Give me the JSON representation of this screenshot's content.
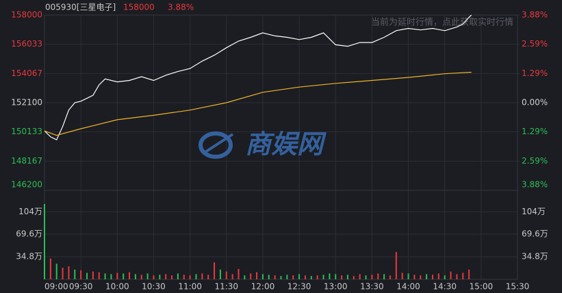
{
  "chart_data": {
    "type": "line",
    "header": {
      "code": "005930[三星电子]",
      "price": "158000",
      "change": "3.88%"
    },
    "notice": "当前为延时行情，点此获取实时行情",
    "watermark": "商娱网",
    "xticks": [
      "09:00",
      "09:30",
      "10:00",
      "10:30",
      "11:00",
      "11:30",
      "12:00",
      "12:30",
      "13:00",
      "13:30",
      "14:00",
      "14:30",
      "15:00",
      "15:30"
    ],
    "xlim": [
      "09:00",
      "15:30"
    ],
    "ylim": [
      146200,
      158000
    ],
    "yticks": [
      146200,
      148167,
      150133,
      152100,
      154067,
      156033,
      158000
    ],
    "y2lim": [
      -3.88,
      3.88
    ],
    "y2ticks": [
      {
        "value": -3.88,
        "label": "3.88%"
      },
      {
        "value": -2.59,
        "label": "2.59%"
      },
      {
        "value": -1.29,
        "label": "1.29%"
      },
      {
        "value": 0,
        "label": "0.00%"
      },
      {
        "value": 1.29,
        "label": "1.29%"
      },
      {
        "value": 2.59,
        "label": "2.59%"
      },
      {
        "value": 3.88,
        "label": "3.88%"
      }
    ],
    "up_color": "#e8383d",
    "down_color": "#2ebd55",
    "flat_color": "#d0d0d0",
    "grid": true,
    "series": [
      {
        "color": "#ffffff",
        "x": [
          "09:00",
          "09:05",
          "09:10",
          "09:15",
          "09:20",
          "09:25",
          "09:30",
          "09:40",
          "09:45",
          "09:50",
          "10:00",
          "10:10",
          "10:20",
          "10:30",
          "10:40",
          "10:50",
          "11:00",
          "11:10",
          "11:20",
          "11:30",
          "11:40",
          "11:50",
          "12:00",
          "12:10",
          "12:20",
          "12:30",
          "12:40",
          "12:50",
          "13:00",
          "13:10",
          "13:20",
          "13:30",
          "13:40",
          "13:50",
          "14:00",
          "14:10",
          "14:20",
          "14:30",
          "14:40",
          "14:45",
          "14:50",
          "14:52"
        ],
        "values": [
          150200,
          149800,
          149600,
          150500,
          151600,
          152100,
          152200,
          152600,
          153300,
          153700,
          153500,
          153600,
          153850,
          153600,
          153950,
          154200,
          154400,
          154900,
          155300,
          155800,
          156250,
          156500,
          156800,
          156600,
          156500,
          156350,
          156500,
          156800,
          156000,
          155900,
          156150,
          156150,
          156500,
          156950,
          157100,
          157000,
          157100,
          156950,
          157200,
          157400,
          157850,
          158000
        ]
      },
      {
        "color": "#f0b429",
        "x": [
          "09:00",
          "09:10",
          "09:30",
          "10:00",
          "10:30",
          "11:00",
          "11:30",
          "12:00",
          "12:30",
          "13:00",
          "13:30",
          "14:00",
          "14:30",
          "14:52"
        ],
        "values": [
          150200,
          149900,
          150350,
          150950,
          151250,
          151600,
          152100,
          152800,
          153150,
          153400,
          153600,
          153800,
          154050,
          154150
        ]
      }
    ],
    "volume": {
      "ylim": [
        0,
        1370000
      ],
      "yticks": [
        {
          "value": 348000,
          "label": "34.8万"
        },
        {
          "value": 696000,
          "label": "69.6万"
        },
        {
          "value": 1040000,
          "label": "104万"
        }
      ],
      "x": [
        "09:00",
        "09:05",
        "09:10",
        "09:15",
        "09:20",
        "09:25",
        "09:30",
        "09:35",
        "09:40",
        "09:45",
        "09:50",
        "09:55",
        "10:00",
        "10:05",
        "10:10",
        "10:15",
        "10:20",
        "10:25",
        "10:30",
        "10:35",
        "10:40",
        "10:45",
        "10:50",
        "10:55",
        "11:00",
        "11:05",
        "11:10",
        "11:15",
        "11:20",
        "11:25",
        "11:30",
        "11:35",
        "11:40",
        "11:45",
        "11:50",
        "11:55",
        "12:00",
        "12:05",
        "12:10",
        "12:15",
        "12:20",
        "12:25",
        "12:30",
        "12:35",
        "12:40",
        "12:45",
        "12:50",
        "12:55",
        "13:00",
        "13:05",
        "13:10",
        "13:15",
        "13:20",
        "13:25",
        "13:30",
        "13:35",
        "13:40",
        "13:45",
        "13:50",
        "13:55",
        "14:00",
        "14:05",
        "14:10",
        "14:15",
        "14:20",
        "14:25",
        "14:30",
        "14:35",
        "14:40",
        "14:45",
        "14:50"
      ],
      "values": [
        1160000,
        320000,
        240000,
        180000,
        200000,
        150000,
        140000,
        100000,
        120000,
        110000,
        90000,
        80000,
        100000,
        90000,
        110000,
        80000,
        70000,
        90000,
        60000,
        70000,
        80000,
        60000,
        90000,
        70000,
        60000,
        80000,
        90000,
        70000,
        260000,
        150000,
        120000,
        80000,
        160000,
        60000,
        90000,
        110000,
        80000,
        70000,
        60000,
        50000,
        70000,
        60000,
        80000,
        60000,
        50000,
        60000,
        70000,
        90000,
        80000,
        60000,
        70000,
        50000,
        80000,
        60000,
        70000,
        90000,
        80000,
        60000,
        420000,
        100000,
        90000,
        70000,
        60000,
        80000,
        70000,
        90000,
        60000,
        120000,
        80000,
        100000,
        150000
      ],
      "colors": [
        "#2ebd55",
        "#e8383d",
        "#2ebd55",
        "#e8383d",
        "#e8383d",
        "#2ebd55",
        "#e8383d",
        "#2ebd55",
        "#e8383d",
        "#e8383d",
        "#2ebd55",
        "#2ebd55",
        "#e8383d",
        "#2ebd55",
        "#e8383d",
        "#2ebd55",
        "#e8383d",
        "#2ebd55",
        "#e8383d",
        "#2ebd55",
        "#e8383d",
        "#e8383d",
        "#2ebd55",
        "#e8383d",
        "#e8383d",
        "#2ebd55",
        "#e8383d",
        "#e8383d",
        "#e8383d",
        "#2ebd55",
        "#e8383d",
        "#e8383d",
        "#e8383d",
        "#2ebd55",
        "#e8383d",
        "#e8383d",
        "#2ebd55",
        "#2ebd55",
        "#e8383d",
        "#2ebd55",
        "#2ebd55",
        "#e8383d",
        "#2ebd55",
        "#e8383d",
        "#2ebd55",
        "#e8383d",
        "#2ebd55",
        "#2ebd55",
        "#2ebd55",
        "#e8383d",
        "#2ebd55",
        "#e8383d",
        "#e8383d",
        "#2ebd55",
        "#e8383d",
        "#e8383d",
        "#2ebd55",
        "#e8383d",
        "#e8383d",
        "#e8383d",
        "#2ebd55",
        "#e8383d",
        "#e8383d",
        "#2ebd55",
        "#e8383d",
        "#e8383d",
        "#2ebd55",
        "#e8383d",
        "#e8383d",
        "#e8383d",
        "#e8383d"
      ]
    }
  }
}
